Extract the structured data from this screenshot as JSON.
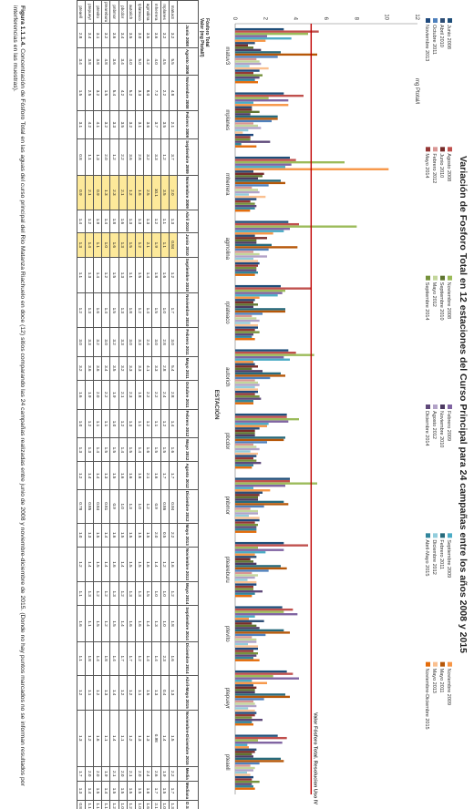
{
  "caption": {
    "label": "Figura 1.1.1.4.",
    "text": "Concentración de Fósforo Total en las aguas del curso principal del Río Matanza Riachuelo en doce (12) sitios comparando las 24 campañas realizadas entre junio de 2008 y noviembre-diciembre de 2015. (Donde no hay puntos marcados no se informan resultados por interferencias en las muestras)."
  },
  "chart_data": {
    "type": "bar",
    "title": "Variación de Fosforo Total en 12 estaciones del Curso Principal para 24 campañas entre los años 2008 y 2015",
    "ylabel": "mg Ptotal/l",
    "xlabel": "ESTACIÓN",
    "ylim": [
      0,
      12
    ],
    "yticks": [
      0,
      2,
      4,
      6,
      8,
      10,
      12
    ],
    "grid": false,
    "legend_position": "top",
    "threshold": {
      "value": 5,
      "label": "Valor Fósforo Total. Resolucion Uso IV",
      "color": "#c00000"
    },
    "categories": [
      "matuv3",
      "mplanes",
      "mherrera",
      "agmolina",
      "rplateaco",
      "autorich",
      "pbcdor",
      "pnbmor",
      "pteareburu",
      "ptevito",
      "ptepueyr",
      "pteaell"
    ],
    "series": [
      {
        "name": "Junio 2008",
        "color": "#1f4e79",
        "values": [
          3.2,
          3.2,
          3.6,
          3.5,
          3.0,
          3.5,
          3.4,
          3.6,
          3.2,
          3.1,
          3.4,
          2.8
        ]
      },
      {
        "name": "Agosto 2008",
        "color": "#c0504d",
        "values": [
          5.5,
          4.5,
          4.0,
          4.2,
          5.0,
          4.0,
          3.4,
          3.6,
          4.8,
          3.8,
          3.8,
          3.4
        ]
      },
      {
        "name": "Noviembre 2008",
        "color": "#9bbb59",
        "values": [
          4.8,
          2.2,
          7.2,
          8.0,
          3.3,
          5.2,
          4.2,
          5.4,
          1.5,
          3.2,
          2.5,
          1.5
        ]
      },
      {
        "name": "Febrero 2009",
        "color": "#8064a2",
        "values": [
          2.1,
          3.5,
          3.7,
          3.6,
          3.1,
          3.2,
          3.5,
          3.3,
          3.2,
          4.1,
          4.2,
          3.1
        ]
      },
      {
        "name": "Septiembre 2009",
        "color": "#4bacc6",
        "values": [
          3.7,
          1.2,
          3.3,
          3.2,
          2.8,
          3.6,
          2.2,
          1.2,
          2.0,
          1.3,
          1.1,
          0.8
        ]
      },
      {
        "name": "Noviembre 2009",
        "color": "#f79646",
        "values": [
          2.0,
          3.5,
          10.1,
          2.5,
          1.6,
          1.2,
          2.1,
          2.3,
          1.3,
          0.9,
          2.1,
          0.9
        ]
      },
      {
        "name": "Abril 2010",
        "color": "#2c4d75",
        "values": [
          1.3,
          1.1,
          1.2,
          1.3,
          1.3,
          1.3,
          1.6,
          1.8,
          1.4,
          1.9,
          1.2,
          1.4
        ]
      },
      {
        "name": "Junio 2010",
        "color": "#772c2a",
        "values": [
          0.84,
          1.1,
          1.9,
          2.1,
          1.2,
          1.5,
          1.3,
          1.6,
          1.0,
          1.1,
          1.4,
          1.3
        ]
      },
      {
        "name": "Septiembre 2010",
        "color": "#5f7530",
        "values": [
          1.2,
          1.6,
          1.8,
          1.4,
          1.5,
          1.1,
          1.3,
          1.5,
          1.2,
          1.4,
          1.3,
          1.1
        ]
      },
      {
        "name": "Noviembre 2010",
        "color": "#4d3b62",
        "values": [
          1.7,
          1.0,
          1.5,
          1.4,
          1.2,
          1.8,
          1.3,
          1.5,
          1.4,
          1.6,
          1.3,
          1.2
        ]
      },
      {
        "name": "Febrero 2011",
        "color": "#276a7c",
        "values": [
          3.0,
          2.8,
          3.0,
          2.4,
          3.3,
          3.0,
          3.3,
          3.2,
          3.0,
          3.2,
          3.3,
          3.0
        ]
      },
      {
        "name": "Mayo 2011",
        "color": "#b65708",
        "values": [
          5.4,
          2.8,
          3.3,
          4.1,
          3.3,
          3.3,
          3.2,
          3.5,
          3.4,
          3.6,
          3.6,
          3.2
        ]
      },
      {
        "name": "Octubre 2011",
        "color": "#4f81bd",
        "values": [
          2.8,
          2.4,
          2.2,
          2.2,
          1.8,
          2.3,
          2.1,
          1.9,
          2.2,
          2.0,
          1.9,
          1.6
        ]
      },
      {
        "name": "Febrero 2012",
        "color": "#d99694",
        "values": [
          1.4,
          1.2,
          1.1,
          1.2,
          1.1,
          1.3,
          1.2,
          1.0,
          1.1,
          1.1,
          1.2,
          1.0
        ]
      },
      {
        "name": "Mayo 2012",
        "color": "#c3d69b",
        "values": [
          1.6,
          1.5,
          1.5,
          1.6,
          1.4,
          1.5,
          1.4,
          1.5,
          1.5,
          1.4,
          1.3,
          1.3
        ]
      },
      {
        "name": "Agosto 2012",
        "color": "#b2a2c7",
        "values": [
          1.7,
          1.7,
          1.6,
          2.1,
          1.6,
          1.6,
          1.6,
          1.5,
          1.3,
          1.4,
          1.4,
          1.2
        ]
      },
      {
        "name": "Diciembre 2012",
        "color": "#92cddc",
        "values": [
          0.94,
          0.86,
          0.9,
          1.2,
          1.0,
          1.3,
          1.0,
          0.9,
          0.81,
          0.84,
          0.85,
          0.78
        ]
      },
      {
        "name": "Mayo 2013",
        "color": "#fac090",
        "values": [
          2.2,
          0.5,
          2.0,
          1.5,
          1.5,
          1.5,
          1.5,
          1.6,
          1.4,
          1.5,
          1.3,
          1.0
        ]
      },
      {
        "name": "Noviembre 2013",
        "color": "#1f497d",
        "values": [
          1.6,
          1.2,
          1.4,
          1.6,
          1.5,
          1.5,
          1.4,
          1.6,
          1.4,
          1.5,
          1.4,
          1.2
        ]
      },
      {
        "name": "Mayo 2014",
        "color": "#953735",
        "values": [
          1.2,
          1.0,
          1.0,
          1.5,
          1.3,
          1.3,
          1.2,
          1.3,
          1.2,
          1.2,
          1.3,
          1.1
        ]
      },
      {
        "name": "Septiembre 2014",
        "color": "#76923c",
        "values": [
          1.8,
          1.0,
          1.3,
          1.4,
          1.6,
          1.6,
          1.4,
          1.5,
          1.2,
          1.5,
          1.1,
          1.6
        ]
      },
      {
        "name": "Diciembre 2014",
        "color": "#5f497a",
        "values": [
          1.6,
          2.3,
          1.4,
          1.4,
          1.2,
          1.7,
          1.7,
          1.4,
          1.8,
          1.4,
          1.8,
          1.1
        ]
      },
      {
        "name": "Abril-Mayo 2015",
        "color": "#31859c",
        "values": [
          1.3,
          0.4,
          1.3,
          1.5,
          1.1,
          1.2,
          1.2,
          1.4,
          1.3,
          1.2,
          1.1,
          1.2
        ]
      },
      {
        "name": "Noviembre-Diciembre 2015",
        "color": "#e46c0a",
        "values": [
          1.5,
          1.4,
          0.98,
          1.3,
          1.3,
          1.2,
          1.1,
          1.4,
          1.1,
          1.6,
          1.2,
          1.3
        ]
      }
    ]
  },
  "table": {
    "top_label": "Fósforo Total",
    "top_label2": "Valor (mg Ptotal/l)",
    "headers": [
      "",
      "Junio 2008",
      "Agosto 2008",
      "Noviembre 2008",
      "Febrero 2009",
      "Septiembre 2009",
      "Noviembre 2009",
      "Abril 2010",
      "Junio 2010",
      "Septiembre 2010",
      "Noviembre 2010",
      "Febrero 2011",
      "Mayo 2011",
      "Octubre 2011",
      "Febrero 2012",
      "Mayo 2012",
      "Agosto 2012",
      "Diciembre 2012",
      "Mayo 2013",
      "Noviembre 2013",
      "Mayo 2014",
      "Septiembre 2014",
      "Diciembre 2014",
      "Abril-Mayo 2015",
      "Noviembre-Diciembre 2015",
      "Media",
      "Mediana",
      "D.S."
    ],
    "rows": [
      [
        "matuv3",
        "3.2",
        "5.5",
        "4.8",
        "2.1",
        "3.7",
        "2.0",
        "1.3",
        "0.84",
        "1.2",
        "1.7",
        "3.0",
        "5.4",
        "2.8",
        "1.4",
        "1.6",
        "1.7",
        "0.94",
        "2.2",
        "1.6",
        "1.2",
        "1.8",
        "1.6",
        "1.3",
        "1.5",
        "2.2",
        "1.7",
        "1.3"
      ],
      [
        "mplanes",
        "3.2",
        "4.5",
        "2.2",
        "3.5",
        "1.2",
        "3.5",
        "1.1",
        "1.1",
        "1.6",
        "1.0",
        "2.8",
        "2.8",
        "2.4",
        "1.2",
        "1.5",
        "1.7",
        "0.86",
        "0.5",
        "1.2",
        "1.0",
        "1.0",
        "2.3",
        "0.4",
        "1.4",
        "1.9",
        "1.5",
        "1.0"
      ],
      [
        "mherrera",
        "3.6",
        "4.0",
        "7.2",
        "3.7",
        "3.3",
        "10.1",
        "1.2",
        "1.9",
        "1.8",
        "1.5",
        "3.0",
        "3.3",
        "2.2",
        "1.1",
        "1.5",
        "1.6",
        "0.9",
        "2.0",
        "1.4",
        "1.0",
        "1.3",
        "1.4",
        "1.3",
        "0.98",
        "2.6",
        "1.7",
        "2.1"
      ],
      [
        "agmolina",
        "3.5",
        "4.2",
        "8.0",
        "3.6",
        "3.2",
        "2.5",
        "1.3",
        "2.1",
        "1.4",
        "1.4",
        "2.4",
        "4.1",
        "2.2",
        "1.2",
        "1.6",
        "2.1",
        "1.2",
        "1.5",
        "1.6",
        "1.5",
        "1.4",
        "1.4",
        "1.5",
        "1.3",
        "2.4",
        "1.6",
        "1.6"
      ],
      [
        "rplateaco",
        "3.0",
        "5.0",
        "3.3",
        "3.1",
        "2.8",
        "1.6",
        "1.3",
        "1.2",
        "1.5",
        "1.2",
        "3.3",
        "3.3",
        "1.8",
        "1.1",
        "1.4",
        "1.6",
        "1.0",
        "1.5",
        "1.5",
        "1.3",
        "1.6",
        "1.2",
        "1.1",
        "1.3",
        "2.0",
        "1.5",
        "1.0"
      ],
      [
        "autorich",
        "3.5",
        "4.0",
        "5.2",
        "3.2",
        "3.6",
        "1.2",
        "1.3",
        "1.5",
        "1.1",
        "1.8",
        "3.0",
        "3.3",
        "2.3",
        "1.3",
        "1.5",
        "1.6",
        "1.3",
        "1.5",
        "1.5",
        "1.3",
        "1.6",
        "1.7",
        "1.2",
        "1.2",
        "2.1",
        "1.5",
        "1.2"
      ],
      [
        "pbcdor",
        "3.4",
        "3.4",
        "4.2",
        "3.5",
        "2.2",
        "2.1",
        "1.6",
        "1.3",
        "1.3",
        "1.3",
        "3.3",
        "3.2",
        "2.1",
        "1.2",
        "1.4",
        "1.6",
        "1.0",
        "1.5",
        "1.4",
        "1.2",
        "1.4",
        "1.7",
        "1.2",
        "1.1",
        "2.0",
        "1.5",
        "1.0"
      ],
      [
        "pnbmor",
        "3.6",
        "3.6",
        "5.4",
        "3.3",
        "1.2",
        "2.3",
        "1.8",
        "1.6",
        "1.5",
        "1.5",
        "3.2",
        "3.5",
        "1.9",
        "1.0",
        "1.5",
        "1.5",
        "0.9",
        "1.6",
        "1.6",
        "1.3",
        "1.5",
        "1.4",
        "1.4",
        "1.4",
        "2.1",
        "1.5",
        "1.2"
      ],
      [
        "pteareburu",
        "3.2",
        "4.8",
        "1.5",
        "3.2",
        "2.0",
        "1.3",
        "1.4",
        "1.0",
        "1.2",
        "1.4",
        "3.0",
        "3.4",
        "2.2",
        "1.1",
        "1.5",
        "1.3",
        "0.81",
        "1.4",
        "1.4",
        "1.2",
        "1.2",
        "1.8",
        "1.3",
        "1.1",
        "1.9",
        "1.4",
        "1.1"
      ],
      [
        "ptevito",
        "3.1",
        "3.8",
        "3.2",
        "4.1",
        "1.3",
        "0.9",
        "1.9",
        "1.1",
        "1.4",
        "1.6",
        "3.2",
        "3.6",
        "2.0",
        "1.1",
        "1.4",
        "1.4",
        "0.84",
        "1.5",
        "1.5",
        "1.2",
        "1.5",
        "1.4",
        "1.2",
        "1.6",
        "2.0",
        "1.5",
        "1.1"
      ],
      [
        "ptepueyr",
        "3.4",
        "3.8",
        "2.5",
        "4.2",
        "1.1",
        "2.1",
        "1.2",
        "1.4",
        "1.3",
        "1.3",
        "3.3",
        "3.6",
        "1.9",
        "1.2",
        "1.3",
        "1.4",
        "0.85",
        "1.3",
        "1.4",
        "1.3",
        "1.1",
        "1.8",
        "1.1",
        "1.2",
        "2.0",
        "1.4",
        "1.1"
      ],
      [
        "pteaell",
        "2.8",
        "3.4",
        "1.5",
        "3.1",
        "0.8",
        "0.9",
        "1.4",
        "1.3",
        "1.1",
        "1.2",
        "3.0",
        "3.2",
        "1.6",
        "1.0",
        "1.3",
        "1.2",
        "0.78",
        "1.0",
        "1.2",
        "1.1",
        "1.6",
        "1.1",
        "1.2",
        "1.3",
        "1.7",
        "1.3",
        "0.8"
      ]
    ]
  }
}
